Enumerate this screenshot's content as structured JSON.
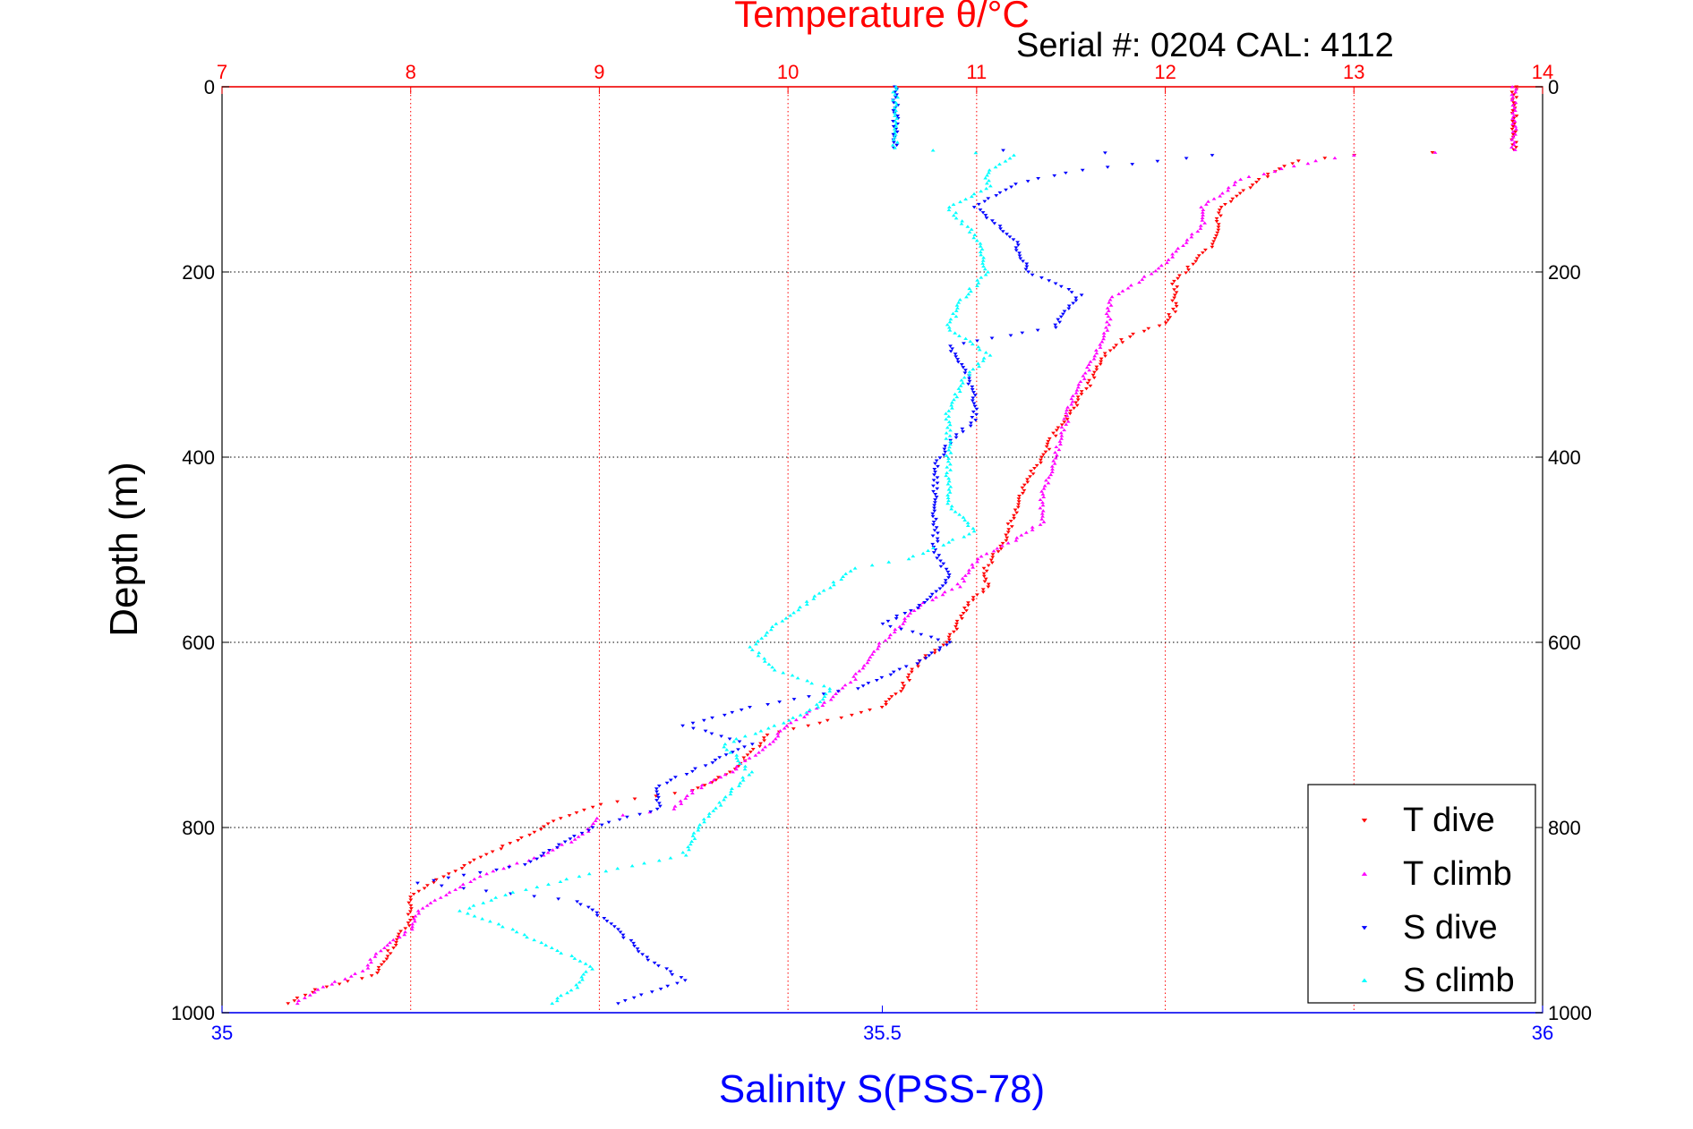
{
  "chart_data": {
    "type": "scatter",
    "title_top": "Temperature θ/°C",
    "annotation": "Serial #: 0204  CAL: 4112",
    "xlabel_bottom": "Salinity S(PSS-78)",
    "ylabel": "Depth (m)",
    "temperature_axis": {
      "range": [
        7,
        14
      ],
      "ticks": [
        "7",
        "8",
        "9",
        "10",
        "11",
        "12",
        "13",
        "14"
      ],
      "position": "top",
      "color": "#ff0000"
    },
    "salinity_axis": {
      "range": [
        35,
        36
      ],
      "ticks": [
        "35",
        "35.5",
        "36"
      ],
      "position": "bottom",
      "color": "#0000ff"
    },
    "depth_axis": {
      "range": [
        0,
        1000
      ],
      "reversed": true,
      "ticks": [
        "0",
        "200",
        "400",
        "600",
        "800",
        "1000"
      ]
    },
    "grid": true,
    "legend": {
      "placement": "bottom-right"
    },
    "series": [
      {
        "name": "T dive",
        "axis": "temperature",
        "color": "#ff0000",
        "marker": "triangle-down",
        "points": [
          [
            13.85,
            0
          ],
          [
            13.85,
            20
          ],
          [
            13.85,
            40
          ],
          [
            13.85,
            60
          ],
          [
            13.85,
            68
          ],
          [
            13.0,
            74
          ],
          [
            12.7,
            80
          ],
          [
            12.5,
            100
          ],
          [
            12.3,
            130
          ],
          [
            12.25,
            170
          ],
          [
            12.05,
            210
          ],
          [
            12.05,
            240
          ],
          [
            12.0,
            255
          ],
          [
            11.8,
            270
          ],
          [
            11.7,
            285
          ],
          [
            11.6,
            320
          ],
          [
            11.5,
            350
          ],
          [
            11.4,
            380
          ],
          [
            11.35,
            400
          ],
          [
            11.25,
            430
          ],
          [
            11.2,
            460
          ],
          [
            11.15,
            490
          ],
          [
            11.05,
            520
          ],
          [
            11.05,
            540
          ],
          [
            10.95,
            560
          ],
          [
            10.9,
            580
          ],
          [
            10.85,
            600
          ],
          [
            10.7,
            620
          ],
          [
            10.6,
            650
          ],
          [
            10.5,
            670
          ],
          [
            10.1,
            690
          ],
          [
            9.9,
            700
          ],
          [
            9.7,
            740
          ],
          [
            9.5,
            760
          ],
          [
            9.0,
            775
          ],
          [
            8.8,
            790
          ],
          [
            8.5,
            820
          ],
          [
            8.2,
            850
          ],
          [
            8.0,
            875
          ],
          [
            8.0,
            900
          ],
          [
            7.9,
            930
          ],
          [
            7.8,
            960
          ],
          [
            7.5,
            975
          ],
          [
            7.35,
            990
          ]
        ]
      },
      {
        "name": "T climb",
        "axis": "temperature",
        "color": "#ff00ff",
        "marker": "triangle-up",
        "points": [
          [
            13.85,
            0
          ],
          [
            13.85,
            20
          ],
          [
            13.85,
            40
          ],
          [
            13.85,
            60
          ],
          [
            13.85,
            68
          ],
          [
            13.0,
            74
          ],
          [
            12.8,
            80
          ],
          [
            12.4,
            100
          ],
          [
            12.2,
            130
          ],
          [
            12.2,
            150
          ],
          [
            12.0,
            190
          ],
          [
            11.9,
            205
          ],
          [
            11.7,
            230
          ],
          [
            11.7,
            260
          ],
          [
            11.6,
            300
          ],
          [
            11.5,
            340
          ],
          [
            11.45,
            380
          ],
          [
            11.4,
            410
          ],
          [
            11.35,
            440
          ],
          [
            11.35,
            470
          ],
          [
            11.2,
            490
          ],
          [
            11.0,
            510
          ],
          [
            10.9,
            540
          ],
          [
            10.7,
            560
          ],
          [
            10.6,
            580
          ],
          [
            10.45,
            610
          ],
          [
            10.35,
            640
          ],
          [
            10.2,
            665
          ],
          [
            10.0,
            690
          ],
          [
            9.9,
            710
          ],
          [
            9.7,
            740
          ],
          [
            9.5,
            760
          ],
          [
            9.4,
            780
          ],
          [
            9.0,
            790
          ],
          [
            8.9,
            810
          ],
          [
            8.7,
            830
          ],
          [
            8.4,
            850
          ],
          [
            8.2,
            870
          ],
          [
            8.05,
            890
          ],
          [
            8.0,
            910
          ],
          [
            7.85,
            930
          ],
          [
            7.75,
            955
          ],
          [
            7.5,
            975
          ],
          [
            7.4,
            990
          ]
        ]
      },
      {
        "name": "S dive",
        "axis": "salinity",
        "color": "#0000ff",
        "marker": "triangle-down",
        "points": [
          [
            35.51,
            0
          ],
          [
            35.51,
            20
          ],
          [
            35.51,
            40
          ],
          [
            35.51,
            60
          ],
          [
            35.51,
            66
          ],
          [
            35.75,
            74
          ],
          [
            35.65,
            90
          ],
          [
            35.6,
            105
          ],
          [
            35.57,
            130
          ],
          [
            35.6,
            165
          ],
          [
            35.61,
            200
          ],
          [
            35.65,
            225
          ],
          [
            35.63,
            260
          ],
          [
            35.55,
            280
          ],
          [
            35.56,
            300
          ],
          [
            35.57,
            330
          ],
          [
            35.57,
            360
          ],
          [
            35.55,
            385
          ],
          [
            35.54,
            410
          ],
          [
            35.54,
            440
          ],
          [
            35.54,
            470
          ],
          [
            35.54,
            500
          ],
          [
            35.55,
            530
          ],
          [
            35.53,
            560
          ],
          [
            35.5,
            580
          ],
          [
            35.55,
            600
          ],
          [
            35.53,
            620
          ],
          [
            35.48,
            650
          ],
          [
            35.4,
            670
          ],
          [
            35.35,
            690
          ],
          [
            35.4,
            710
          ],
          [
            35.37,
            730
          ],
          [
            35.33,
            755
          ],
          [
            35.33,
            780
          ],
          [
            35.28,
            800
          ],
          [
            35.23,
            840
          ],
          [
            35.15,
            860
          ],
          [
            35.27,
            880
          ],
          [
            35.3,
            910
          ],
          [
            35.32,
            940
          ],
          [
            35.35,
            965
          ],
          [
            35.3,
            990
          ]
        ]
      },
      {
        "name": "S climb",
        "axis": "salinity",
        "color": "#00ffff",
        "marker": "triangle-up",
        "points": [
          [
            35.51,
            0
          ],
          [
            35.51,
            20
          ],
          [
            35.51,
            40
          ],
          [
            35.51,
            60
          ],
          [
            35.51,
            66
          ],
          [
            35.6,
            74
          ],
          [
            35.58,
            90
          ],
          [
            35.58,
            110
          ],
          [
            35.55,
            130
          ],
          [
            35.57,
            160
          ],
          [
            35.58,
            200
          ],
          [
            35.56,
            230
          ],
          [
            35.55,
            260
          ],
          [
            35.58,
            290
          ],
          [
            35.56,
            320
          ],
          [
            35.55,
            350
          ],
          [
            35.55,
            380
          ],
          [
            35.55,
            420
          ],
          [
            35.55,
            450
          ],
          [
            35.57,
            480
          ],
          [
            35.52,
            510
          ],
          [
            35.48,
            520
          ],
          [
            35.45,
            550
          ],
          [
            35.42,
            580
          ],
          [
            35.4,
            605
          ],
          [
            35.42,
            630
          ],
          [
            35.46,
            650
          ],
          [
            35.45,
            670
          ],
          [
            35.42,
            690
          ],
          [
            35.38,
            710
          ],
          [
            35.4,
            740
          ],
          [
            35.38,
            770
          ],
          [
            35.36,
            800
          ],
          [
            35.35,
            830
          ],
          [
            35.28,
            850
          ],
          [
            35.22,
            870
          ],
          [
            35.18,
            890
          ],
          [
            35.22,
            910
          ],
          [
            35.25,
            930
          ],
          [
            35.28,
            950
          ],
          [
            35.27,
            970
          ],
          [
            35.25,
            990
          ]
        ]
      }
    ]
  }
}
